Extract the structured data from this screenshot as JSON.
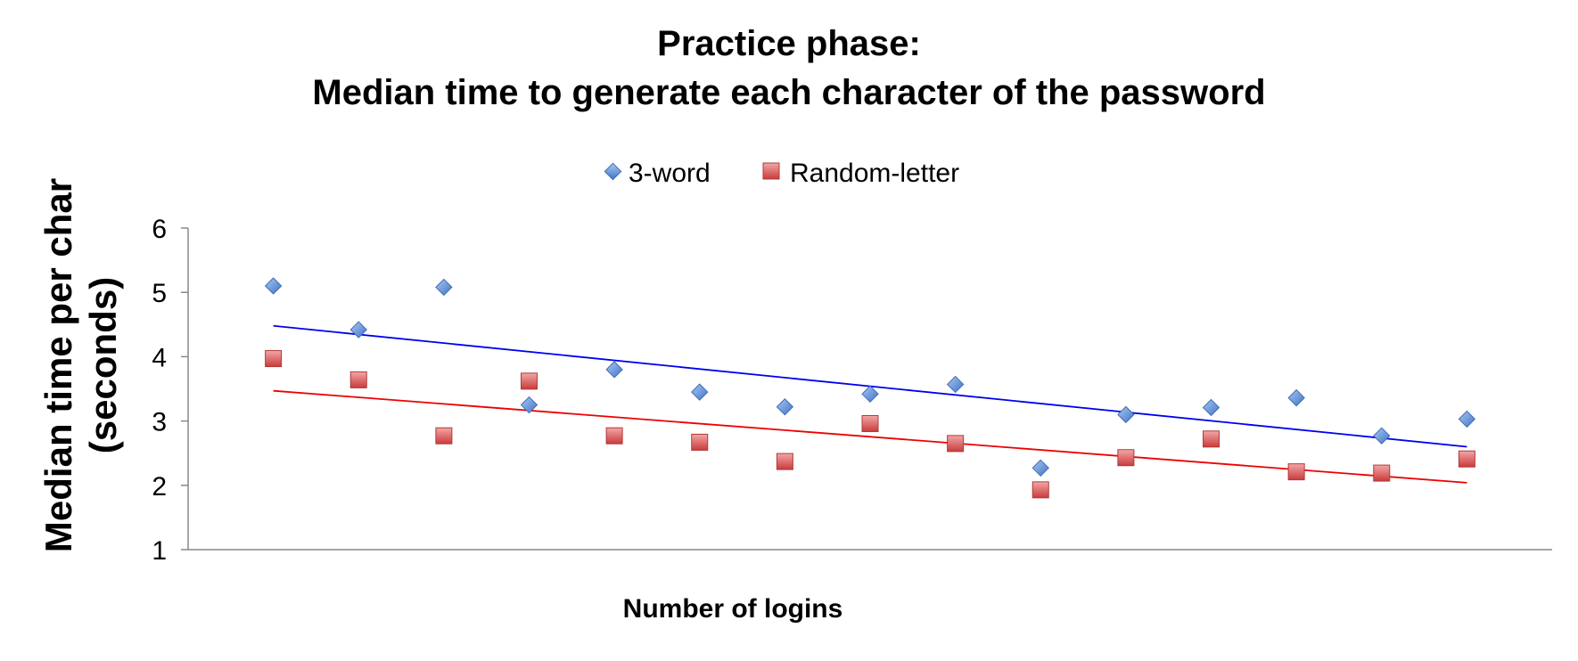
{
  "chart_data": {
    "type": "scatter",
    "title_line1": "Practice phase:",
    "title_line2": "Median time to generate each character of the password",
    "xlabel": "Number of logins",
    "ylabel_line1": "Median time per char",
    "ylabel_line2": "(seconds)",
    "ylim": [
      1,
      6
    ],
    "yticks": [
      1,
      2,
      3,
      4,
      5,
      6
    ],
    "x": [
      1,
      2,
      3,
      4,
      5,
      6,
      7,
      8,
      9,
      10,
      11,
      12,
      13,
      14,
      15
    ],
    "xlim": [
      0,
      16
    ],
    "legend_position": "top-center",
    "grid": false,
    "series": [
      {
        "name": "3-word",
        "marker": "diamond",
        "color": "#5b8fd8",
        "trend_color": "#0000ee",
        "values": [
          5.1,
          4.42,
          5.08,
          3.25,
          3.8,
          3.45,
          3.22,
          3.42,
          3.57,
          2.27,
          3.1,
          3.21,
          3.36,
          2.77,
          3.03
        ],
        "trend": [
          4.48,
          2.6
        ]
      },
      {
        "name": "Random-letter",
        "marker": "square",
        "color": "#e05a5a",
        "trend_color": "#ee0000",
        "values": [
          3.97,
          3.64,
          2.77,
          3.62,
          2.77,
          2.67,
          2.37,
          2.96,
          2.65,
          1.93,
          2.43,
          2.72,
          2.21,
          2.19,
          2.41
        ],
        "trend": [
          3.47,
          2.04
        ]
      }
    ]
  }
}
